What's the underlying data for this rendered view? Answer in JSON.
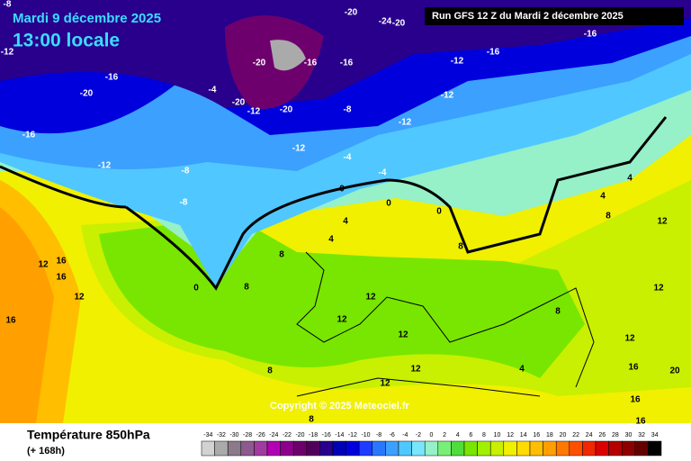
{
  "header": {
    "date": "Mardi 9 décembre 2025",
    "time": "13:00 locale",
    "run": "Run GFS 12 Z du Mardi 2 décembre 2025"
  },
  "footer": {
    "title": "Température 850hPa",
    "lead": "(+ 168h)",
    "copyright": "Copyright © 2025 Meteociel.fr"
  },
  "isotherm_labels": [
    -8,
    -20,
    -24,
    -20,
    -16,
    -16,
    -12,
    -12,
    -20,
    -16,
    -16,
    -16,
    -20,
    -4,
    -20,
    -12,
    -20,
    -8,
    -12,
    -12,
    -16,
    -12,
    -4,
    -12,
    -8,
    -4,
    0,
    -8,
    0,
    4,
    4,
    0,
    4,
    8,
    12,
    4,
    8,
    0,
    12,
    16,
    16,
    8,
    12,
    12,
    8,
    12,
    12,
    8,
    12,
    12,
    16,
    16,
    20,
    16,
    4,
    8,
    16,
    12,
    8,
    12
  ],
  "scale": {
    "values": [
      -34,
      -32,
      -30,
      -28,
      -26,
      -24,
      -22,
      -20,
      -18,
      -16,
      -14,
      -12,
      -10,
      -8,
      -6,
      -4,
      -2,
      0,
      2,
      4,
      6,
      8,
      10,
      12,
      14,
      16,
      18,
      20,
      22,
      24,
      26,
      28,
      30,
      32,
      34
    ],
    "colors": [
      "#d2d2d2",
      "#aaaaaa",
      "#8a7a8a",
      "#8c5a8c",
      "#a03ca0",
      "#b400b4",
      "#8c008c",
      "#6e006e",
      "#50005a",
      "#28008c",
      "#0000b4",
      "#0000dc",
      "#1e3cff",
      "#2878ff",
      "#3ca0ff",
      "#50c8ff",
      "#78e6ff",
      "#96f0c8",
      "#78f078",
      "#50dc3c",
      "#78e600",
      "#a0f000",
      "#c8f000",
      "#f0f000",
      "#ffdc00",
      "#ffbe00",
      "#ffa000",
      "#ff7800",
      "#ff5000",
      "#f02800",
      "#dc0000",
      "#b40000",
      "#8c0000",
      "#640000",
      "#000000"
    ]
  }
}
